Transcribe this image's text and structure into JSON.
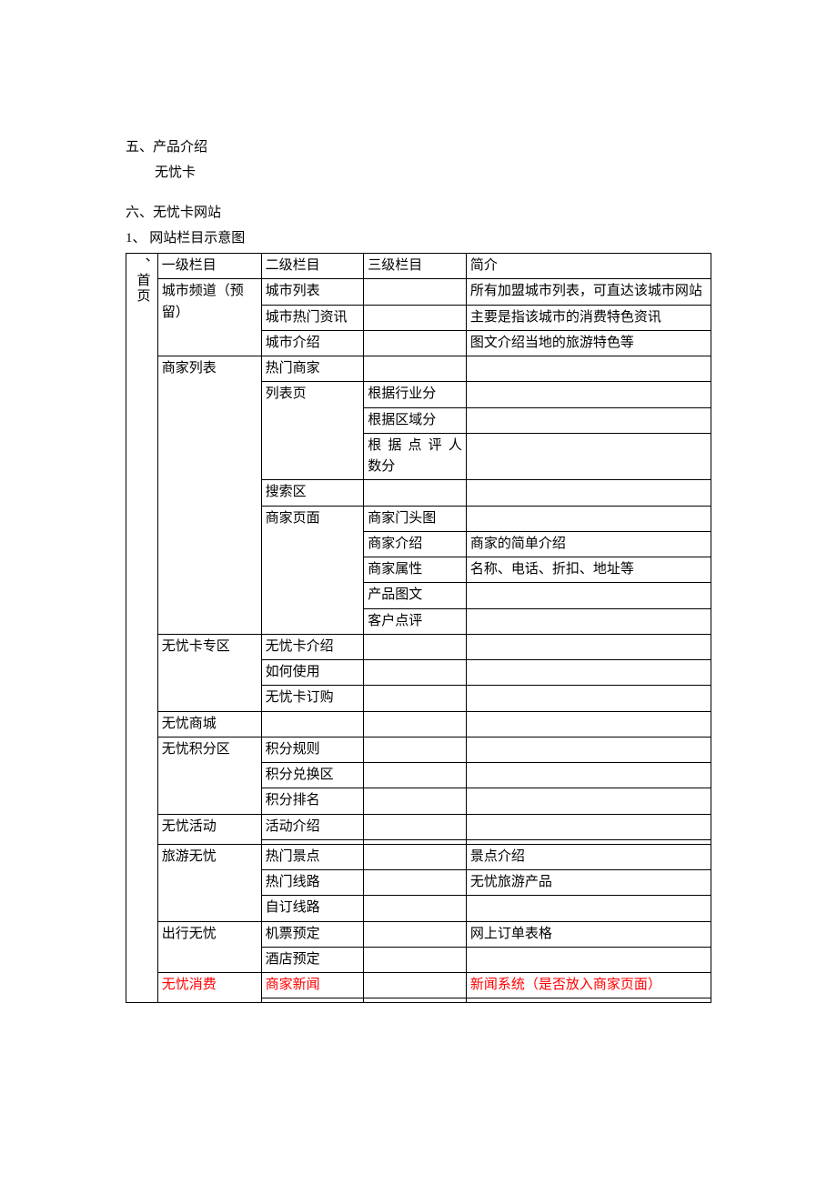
{
  "headings": {
    "h5": "五、产品介绍",
    "h5_sub": "无忧卡",
    "h6": "六、无忧卡网站",
    "h6_1": "1、 网站栏目示意图"
  },
  "table": {
    "header": {
      "c0": "、首页",
      "c1": "一级栏目",
      "c2": "二级栏目",
      "c3": "三级栏目",
      "c4": "简介"
    },
    "rows": [
      {
        "c1": "城市频道（预留）",
        "c2": "城市列表",
        "c3": "",
        "c4": "所有加盟城市列表，可直达该城市网站",
        "span1": 3
      },
      {
        "c2": "城市热门资讯",
        "c3": "",
        "c4": "主要是指该城市的消费特色资讯"
      },
      {
        "c2": "城市介绍",
        "c3": "",
        "c4": "图文介绍当地的旅游特色等"
      },
      {
        "c1": "商家列表",
        "c2": "热门商家",
        "c3": "",
        "c4": "",
        "span1": 10
      },
      {
        "c2": "列表页",
        "c3": "根据行业分",
        "c4": "",
        "span2": 3
      },
      {
        "c3": "根据区域分",
        "c4": ""
      },
      {
        "c3": "根据点评人数分",
        "c4": "",
        "justify3": true
      },
      {
        "c2": "搜索区",
        "c3": "",
        "c4": ""
      },
      {
        "c2": "商家页面",
        "c3": "商家门头图",
        "c4": "",
        "span2": 5
      },
      {
        "c3": "商家介绍",
        "c4": "商家的简单介绍"
      },
      {
        "c3": "商家属性",
        "c4": "名称、电话、折扣、地址等"
      },
      {
        "c3": "产品图文",
        "c4": ""
      },
      {
        "c3": "客户点评",
        "c4": ""
      },
      {
        "c1": "无忧卡专区",
        "c2": "无忧卡介绍",
        "c3": "",
        "c4": "",
        "span1": 3
      },
      {
        "c2": "如何使用",
        "c3": "",
        "c4": ""
      },
      {
        "c2": "无忧卡订购",
        "c3": "",
        "c4": ""
      },
      {
        "c1": "无忧商城",
        "c2": "",
        "c3": "",
        "c4": ""
      },
      {
        "c1": "无忧积分区",
        "c2": "积分规则",
        "c3": "",
        "c4": "",
        "span1": 3
      },
      {
        "c2": "积分兑换区",
        "c3": "",
        "c4": ""
      },
      {
        "c2": "积分排名",
        "c3": "",
        "c4": ""
      },
      {
        "c1": "无忧活动",
        "c2": "活动介绍",
        "c3": "",
        "c4": "",
        "span1": 2
      },
      {
        "c2": "",
        "c3": "",
        "c4": ""
      },
      {
        "c1": "旅游无忧",
        "c2": "热门景点",
        "c3": "",
        "c4": "景点介绍",
        "span1": 3
      },
      {
        "c2": "热门线路",
        "c3": "",
        "c4": "无忧旅游产品"
      },
      {
        "c2": "自订线路",
        "c3": "",
        "c4": ""
      },
      {
        "c1": "出行无忧",
        "c2": "机票预定",
        "c3": "",
        "c4": "网上订单表格",
        "span1": 2
      },
      {
        "c2": "酒店预定",
        "c3": "",
        "c4": ""
      },
      {
        "c1": "无忧消费",
        "c2": "商家新闻",
        "c3": "",
        "c4": "新闻系统（是否放入商家页面）",
        "span1": 2,
        "red": true
      },
      {
        "c2": "",
        "c3": "",
        "c4": ""
      }
    ]
  },
  "colors": {
    "text": "#000000",
    "highlight": "#ff0000",
    "border": "#000000",
    "background": "#ffffff"
  }
}
